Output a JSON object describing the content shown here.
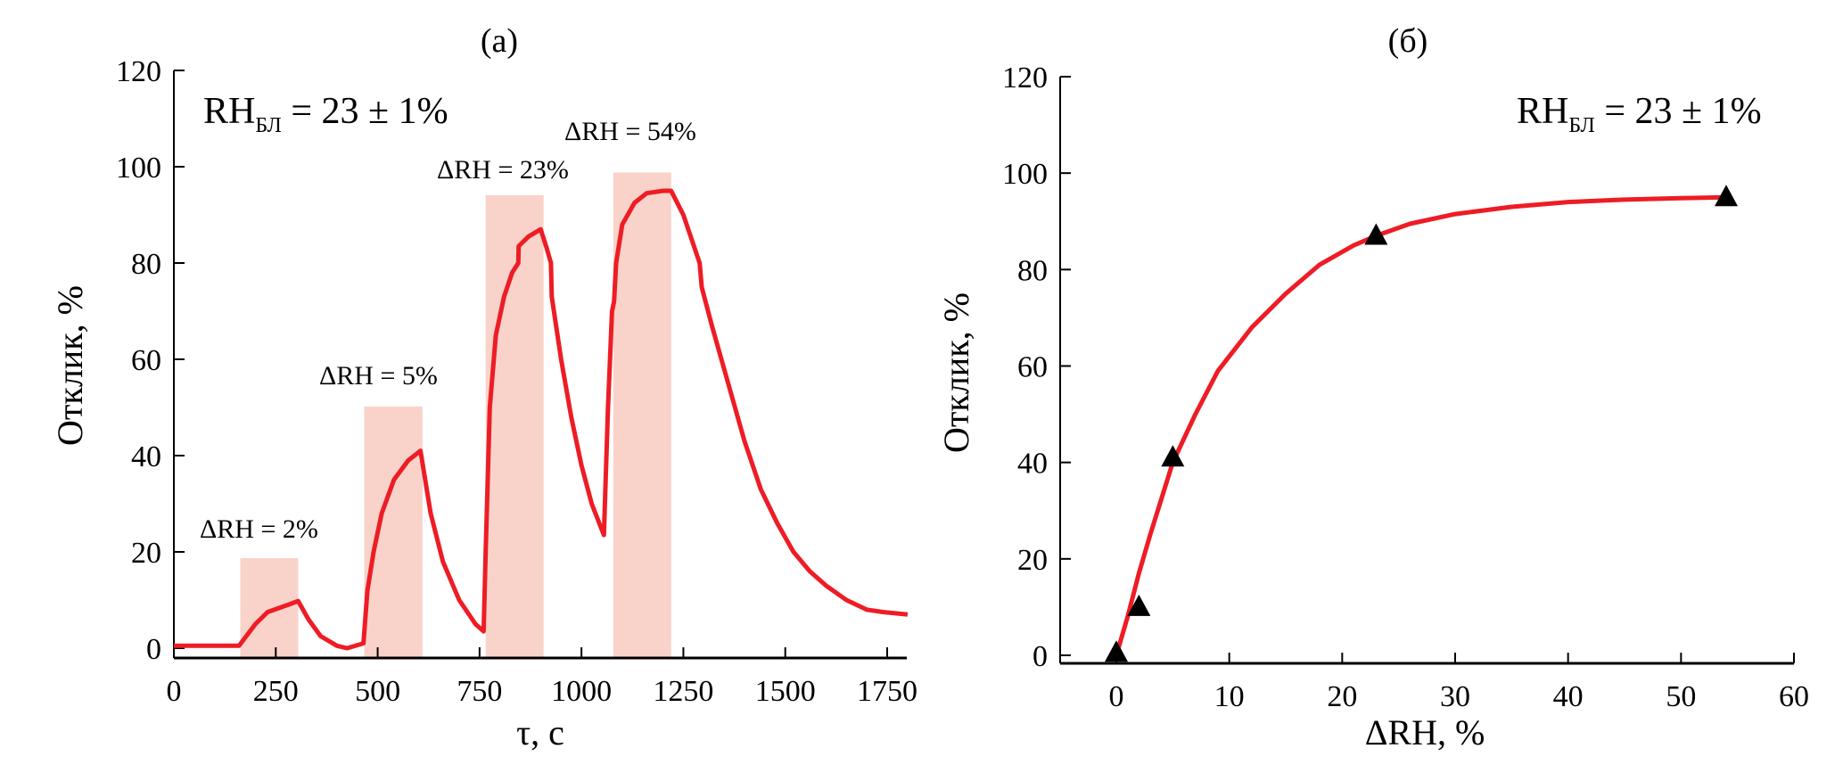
{
  "chart_data": [
    {
      "type": "line",
      "panel_label": "(a)",
      "xlabel": "τ, с",
      "ylabel": "Отклик, %",
      "xlim": [
        0,
        1800
      ],
      "ylim": [
        0,
        120
      ],
      "xticks": [
        0,
        250,
        500,
        750,
        1000,
        1250,
        1500,
        1750
      ],
      "yticks": [
        0,
        20,
        40,
        60,
        80,
        100,
        120
      ],
      "baseline_label": {
        "main": "RH",
        "sub": "БЛ",
        "rest": " = 23 ± 1%"
      },
      "series": [
        {
          "name": "response",
          "color": "#ee1c25",
          "x": [
            0,
            160,
            200,
            230,
            280,
            305,
            330,
            360,
            400,
            425,
            465,
            475,
            490,
            510,
            540,
            575,
            605,
            630,
            660,
            700,
            740,
            760,
            765,
            775,
            790,
            810,
            830,
            845,
            846,
            870,
            900,
            915,
            925,
            927,
            950,
            975,
            1000,
            1025,
            1055,
            1065,
            1075,
            1080,
            1085,
            1100,
            1130,
            1160,
            1200,
            1220,
            1250,
            1290,
            1295,
            1320,
            1360,
            1400,
            1440,
            1480,
            1520,
            1560,
            1600,
            1650,
            1700,
            1740,
            1800
          ],
          "y": [
            0.5,
            0.5,
            5,
            7.5,
            9,
            9.8,
            6,
            2.5,
            0.5,
            0,
            1,
            12,
            20,
            28,
            35,
            39,
            41,
            28,
            18,
            10,
            5,
            3.5,
            20,
            50,
            65,
            73,
            78,
            80,
            83.5,
            85.5,
            87,
            83,
            80,
            73,
            60,
            48,
            38,
            30,
            23.5,
            50,
            70,
            72,
            80,
            88,
            92.5,
            94.5,
            95,
            95,
            90,
            80,
            75,
            67,
            55,
            43,
            33,
            26,
            20,
            16,
            13,
            10,
            8,
            7.5,
            7
          ]
        }
      ],
      "humidity_pulses": [
        {
          "label": "ΔRH = 2%",
          "start": 163,
          "end": 305,
          "height": 18.7
        },
        {
          "label": "ΔRH = 5%",
          "start": 467,
          "end": 610,
          "height": 50.2
        },
        {
          "label": "ΔRH = 23%",
          "start": 765,
          "end": 907,
          "height": 94.1
        },
        {
          "label": "ΔRH = 54%",
          "start": 1078,
          "end": 1220,
          "height": 98.8
        }
      ],
      "pulse_color": "#f9d3c9"
    },
    {
      "type": "scatter",
      "panel_label": "(б)",
      "xlabel": "ΔRH,  %",
      "ylabel": "Отклик, %",
      "xlim": [
        -5,
        60
      ],
      "ylim": [
        0,
        120
      ],
      "xticks": [
        0,
        10,
        20,
        30,
        40,
        50,
        60
      ],
      "yticks": [
        0,
        20,
        40,
        60,
        80,
        100,
        120
      ],
      "baseline_label": {
        "main": "RH",
        "sub": "БЛ",
        "rest": " = 23 ± 1%"
      },
      "points": {
        "x": [
          0,
          2,
          5,
          23,
          54
        ],
        "y": [
          0.5,
          10,
          41,
          87,
          95
        ],
        "marker": "triangle",
        "color": "#000000"
      },
      "fit": {
        "color": "#ee1c25",
        "x": [
          0,
          1,
          2,
          3,
          5,
          7,
          9,
          12,
          15,
          18,
          21,
          23,
          26,
          30,
          35,
          40,
          45,
          50,
          54
        ],
        "y": [
          0,
          8,
          17,
          25,
          40,
          50,
          59,
          68,
          75,
          81,
          85,
          87,
          89.5,
          91.5,
          93,
          94,
          94.5,
          94.8,
          95
        ]
      }
    }
  ]
}
